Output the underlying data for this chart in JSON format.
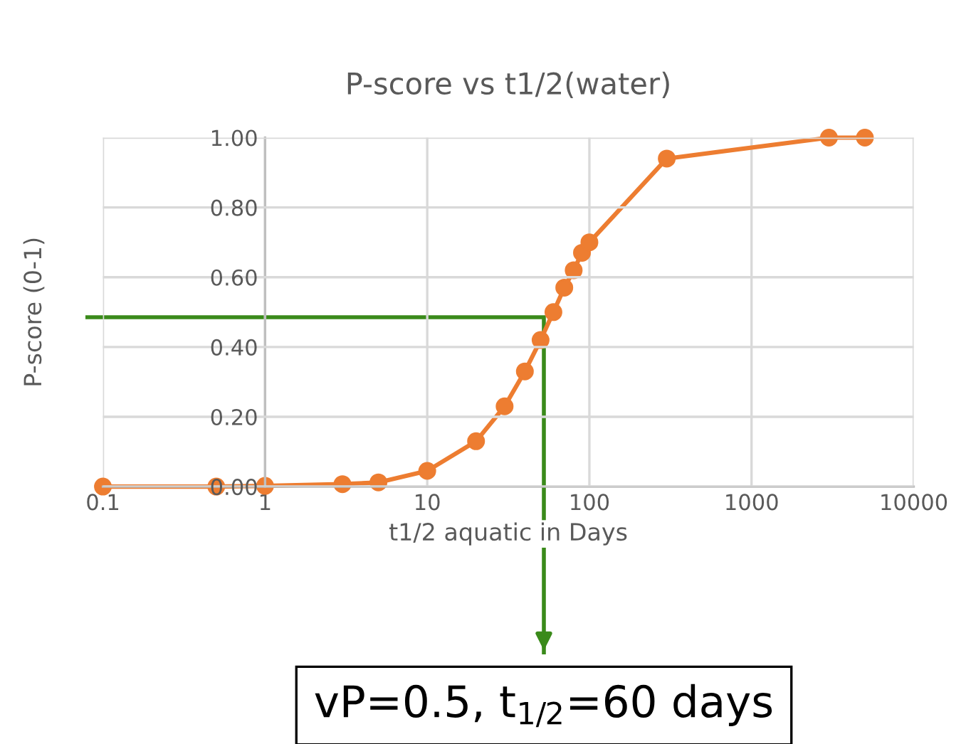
{
  "chart_data": {
    "type": "line",
    "title": "P-score vs t1/2(water)",
    "xlabel": "t1/2 aquatic in Days",
    "ylabel": "P-score (0-1)",
    "x": [
      0.1,
      0.5,
      1,
      3,
      5,
      10,
      20,
      30,
      40,
      50,
      60,
      70,
      80,
      90,
      100,
      300,
      3000,
      5000
    ],
    "series": [
      {
        "color": "#ed7d31",
        "values": [
          0,
          0,
          0.002,
          0.007,
          0.012,
          0.045,
          0.13,
          0.23,
          0.33,
          0.42,
          0.5,
          0.57,
          0.62,
          0.67,
          0.7,
          0.94,
          1.0,
          1.0
        ]
      }
    ],
    "log": "x",
    "xlim": [
      0.1,
      10000
    ],
    "xticks": [
      0.1,
      1,
      10,
      100,
      1000,
      10000
    ],
    "ylim": [
      0,
      1
    ],
    "yticks": [
      {
        "value": 0,
        "label": "0.00"
      },
      {
        "value": 0.2,
        "label": "0.20"
      },
      {
        "value": 0.4,
        "label": "0.40"
      },
      {
        "value": 0.6,
        "label": "0.60"
      },
      {
        "value": 0.8,
        "label": "0.80"
      },
      {
        "value": 1,
        "label": "1.00"
      }
    ],
    "grid": true,
    "marker": "circle",
    "line_style": "solid",
    "legend": false,
    "annotations": [
      "vP=0.5, t$_{1/2}$=60 days"
    ]
  }
}
